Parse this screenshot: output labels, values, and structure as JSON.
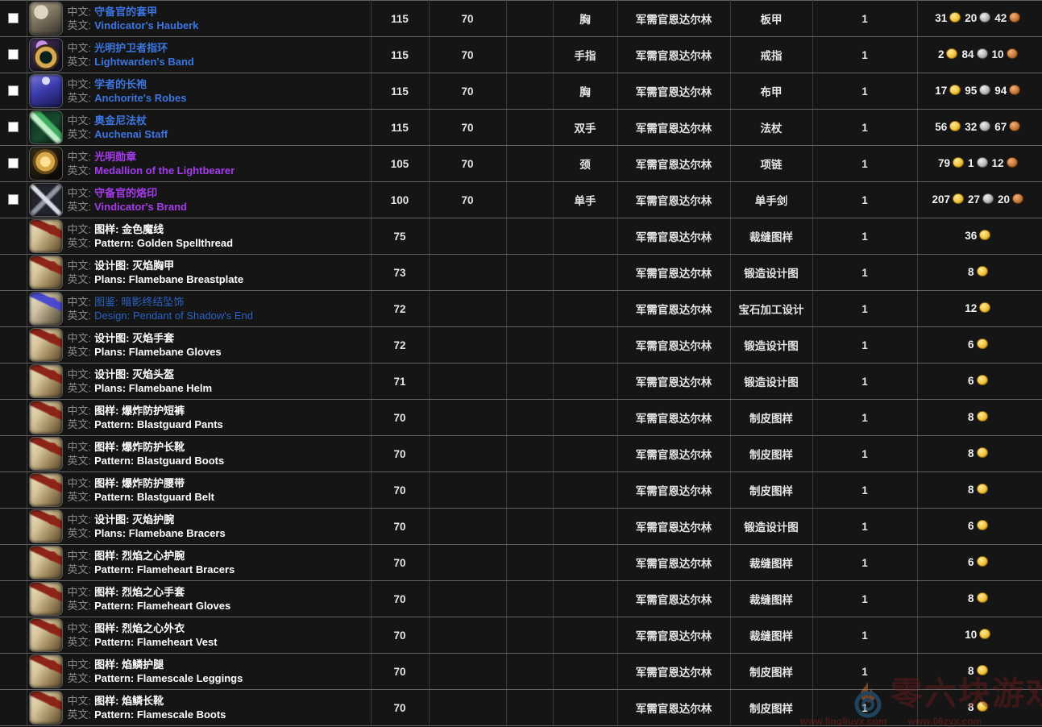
{
  "labels": {
    "zh": "中文:",
    "en": "英文:"
  },
  "colors": {
    "rare_link": "#3b76e0",
    "epic_link": "#a63bee",
    "common_text": "#ffffff",
    "gold_coin": "#f2c53d",
    "silver_coin": "#b9b9b9",
    "copper_coin": "#c97a3a",
    "row_background": "#151515"
  },
  "watermark": {
    "site_name": "零六块游戏",
    "url_left": "www.lingliuyx.com",
    "url_right": "www.06zyx.com"
  },
  "table": {
    "rows": [
      {
        "checkbox": true,
        "icon": "hauberk",
        "quality": "q-rare",
        "zh": "守备官的套甲",
        "en": "Vindicator's Hauberk",
        "ilvl": "115",
        "req": "70",
        "extra": "",
        "slot": "胸",
        "source": "军需官恩达尔林",
        "type": "板甲",
        "qty": "1",
        "price": [
          {
            "v": "31",
            "c": "gold"
          },
          {
            "v": "20",
            "c": "silver"
          },
          {
            "v": "42",
            "c": "copper"
          }
        ]
      },
      {
        "checkbox": true,
        "icon": "ring",
        "quality": "q-rare",
        "zh": "光明护卫者指环",
        "en": "Lightwarden's Band",
        "ilvl": "115",
        "req": "70",
        "extra": "",
        "slot": "手指",
        "source": "军需官恩达尔林",
        "type": "戒指",
        "qty": "1",
        "price": [
          {
            "v": "2",
            "c": "gold"
          },
          {
            "v": "84",
            "c": "silver"
          },
          {
            "v": "10",
            "c": "copper"
          }
        ]
      },
      {
        "checkbox": true,
        "icon": "robe",
        "quality": "q-rare",
        "zh": "学者的长袍",
        "en": "Anchorite's Robes",
        "ilvl": "115",
        "req": "70",
        "extra": "",
        "slot": "胸",
        "source": "军需官恩达尔林",
        "type": "布甲",
        "qty": "1",
        "price": [
          {
            "v": "17",
            "c": "gold"
          },
          {
            "v": "95",
            "c": "silver"
          },
          {
            "v": "94",
            "c": "copper"
          }
        ]
      },
      {
        "checkbox": true,
        "icon": "staff",
        "quality": "q-rare",
        "zh": "奥金尼法杖",
        "en": "Auchenai Staff",
        "ilvl": "115",
        "req": "70",
        "extra": "",
        "slot": "双手",
        "source": "军需官恩达尔林",
        "type": "法杖",
        "qty": "1",
        "price": [
          {
            "v": "56",
            "c": "gold"
          },
          {
            "v": "32",
            "c": "silver"
          },
          {
            "v": "67",
            "c": "copper"
          }
        ]
      },
      {
        "checkbox": true,
        "icon": "medallion",
        "quality": "q-epic",
        "zh": "光明勋章",
        "en": "Medallion of the Lightbearer",
        "ilvl": "105",
        "req": "70",
        "extra": "",
        "slot": "颈",
        "source": "军需官恩达尔林",
        "type": "项链",
        "qty": "1",
        "price": [
          {
            "v": "79",
            "c": "gold"
          },
          {
            "v": "1",
            "c": "silver"
          },
          {
            "v": "12",
            "c": "copper"
          }
        ]
      },
      {
        "checkbox": true,
        "icon": "sword",
        "quality": "q-epic",
        "zh": "守备官的烙印",
        "en": "Vindicator's Brand",
        "ilvl": "100",
        "req": "70",
        "extra": "",
        "slot": "单手",
        "source": "军需官恩达尔林",
        "type": "单手剑",
        "qty": "1",
        "price": [
          {
            "v": "207",
            "c": "gold"
          },
          {
            "v": "27",
            "c": "silver"
          },
          {
            "v": "20",
            "c": "copper"
          }
        ]
      },
      {
        "checkbox": false,
        "icon": "scroll",
        "quality": "q-common",
        "zh": "图样: 金色魔线",
        "en": "Pattern: Golden Spellthread",
        "ilvl": "75",
        "req": "",
        "extra": "",
        "slot": "",
        "source": "军需官恩达尔林",
        "type": "裁缝图样",
        "qty": "1",
        "price": [
          {
            "v": "36",
            "c": "gold"
          }
        ]
      },
      {
        "checkbox": false,
        "icon": "scroll",
        "quality": "q-common",
        "zh": "设计图: 灭焰胸甲",
        "en": "Plans: Flamebane Breastplate",
        "ilvl": "73",
        "req": "",
        "extra": "",
        "slot": "",
        "source": "军需官恩达尔林",
        "type": "锻造设计图",
        "qty": "1",
        "price": [
          {
            "v": "8",
            "c": "gold"
          }
        ]
      },
      {
        "checkbox": false,
        "icon": "scroll-blue",
        "quality": "q-rare2",
        "zh": "图鉴: 暗影终结坠饰",
        "en": "Design: Pendant of Shadow's End",
        "ilvl": "72",
        "req": "",
        "extra": "",
        "slot": "",
        "source": "军需官恩达尔林",
        "type": "宝石加工设计",
        "qty": "1",
        "price": [
          {
            "v": "12",
            "c": "gold"
          }
        ]
      },
      {
        "checkbox": false,
        "icon": "scroll",
        "quality": "q-common",
        "zh": "设计图: 灭焰手套",
        "en": "Plans: Flamebane Gloves",
        "ilvl": "72",
        "req": "",
        "extra": "",
        "slot": "",
        "source": "军需官恩达尔林",
        "type": "锻造设计图",
        "qty": "1",
        "price": [
          {
            "v": "6",
            "c": "gold"
          }
        ]
      },
      {
        "checkbox": false,
        "icon": "scroll",
        "quality": "q-common",
        "zh": "设计图: 灭焰头盔",
        "en": "Plans: Flamebane Helm",
        "ilvl": "71",
        "req": "",
        "extra": "",
        "slot": "",
        "source": "军需官恩达尔林",
        "type": "锻造设计图",
        "qty": "1",
        "price": [
          {
            "v": "6",
            "c": "gold"
          }
        ]
      },
      {
        "checkbox": false,
        "icon": "scroll",
        "quality": "q-common",
        "zh": "图样: 爆炸防护短裤",
        "en": "Pattern: Blastguard Pants",
        "ilvl": "70",
        "req": "",
        "extra": "",
        "slot": "",
        "source": "军需官恩达尔林",
        "type": "制皮图样",
        "qty": "1",
        "price": [
          {
            "v": "8",
            "c": "gold"
          }
        ]
      },
      {
        "checkbox": false,
        "icon": "scroll",
        "quality": "q-common",
        "zh": "图样: 爆炸防护长靴",
        "en": "Pattern: Blastguard Boots",
        "ilvl": "70",
        "req": "",
        "extra": "",
        "slot": "",
        "source": "军需官恩达尔林",
        "type": "制皮图样",
        "qty": "1",
        "price": [
          {
            "v": "8",
            "c": "gold"
          }
        ]
      },
      {
        "checkbox": false,
        "icon": "scroll",
        "quality": "q-common",
        "zh": "图样: 爆炸防护腰带",
        "en": "Pattern: Blastguard Belt",
        "ilvl": "70",
        "req": "",
        "extra": "",
        "slot": "",
        "source": "军需官恩达尔林",
        "type": "制皮图样",
        "qty": "1",
        "price": [
          {
            "v": "8",
            "c": "gold"
          }
        ]
      },
      {
        "checkbox": false,
        "icon": "scroll",
        "quality": "q-common",
        "zh": "设计图: 灭焰护腕",
        "en": "Plans: Flamebane Bracers",
        "ilvl": "70",
        "req": "",
        "extra": "",
        "slot": "",
        "source": "军需官恩达尔林",
        "type": "锻造设计图",
        "qty": "1",
        "price": [
          {
            "v": "6",
            "c": "gold"
          }
        ]
      },
      {
        "checkbox": false,
        "icon": "scroll",
        "quality": "q-common",
        "zh": "图样: 烈焰之心护腕",
        "en": "Pattern: Flameheart Bracers",
        "ilvl": "70",
        "req": "",
        "extra": "",
        "slot": "",
        "source": "军需官恩达尔林",
        "type": "裁缝图样",
        "qty": "1",
        "price": [
          {
            "v": "6",
            "c": "gold"
          }
        ]
      },
      {
        "checkbox": false,
        "icon": "scroll",
        "quality": "q-common",
        "zh": "图样: 烈焰之心手套",
        "en": "Pattern: Flameheart Gloves",
        "ilvl": "70",
        "req": "",
        "extra": "",
        "slot": "",
        "source": "军需官恩达尔林",
        "type": "裁缝图样",
        "qty": "1",
        "price": [
          {
            "v": "8",
            "c": "gold"
          }
        ]
      },
      {
        "checkbox": false,
        "icon": "scroll",
        "quality": "q-common",
        "zh": "图样: 烈焰之心外衣",
        "en": "Pattern: Flameheart Vest",
        "ilvl": "70",
        "req": "",
        "extra": "",
        "slot": "",
        "source": "军需官恩达尔林",
        "type": "裁缝图样",
        "qty": "1",
        "price": [
          {
            "v": "10",
            "c": "gold"
          }
        ]
      },
      {
        "checkbox": false,
        "icon": "scroll",
        "quality": "q-common",
        "zh": "图样: 焰鳞护腿",
        "en": "Pattern: Flamescale Leggings",
        "ilvl": "70",
        "req": "",
        "extra": "",
        "slot": "",
        "source": "军需官恩达尔林",
        "type": "制皮图样",
        "qty": "1",
        "price": [
          {
            "v": "8",
            "c": "gold"
          }
        ]
      },
      {
        "checkbox": false,
        "icon": "scroll",
        "quality": "q-common",
        "zh": "图样: 焰鳞长靴",
        "en": "Pattern: Flamescale Boots",
        "ilvl": "70",
        "req": "",
        "extra": "",
        "slot": "",
        "source": "军需官恩达尔林",
        "type": "制皮图样",
        "qty": "1",
        "price": [
          {
            "v": "8",
            "c": "gold"
          }
        ]
      }
    ]
  }
}
